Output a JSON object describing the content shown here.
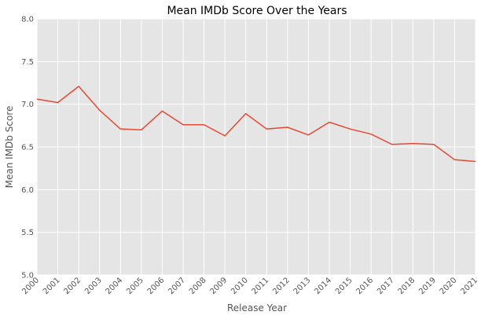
{
  "chart_data": {
    "type": "line",
    "title": "Mean IMDb Score Over the Years",
    "xlabel": "Release Year",
    "ylabel": "Mean IMDb Score",
    "x": [
      "2000",
      "2001",
      "2002",
      "2003",
      "2004",
      "2005",
      "2006",
      "2007",
      "2008",
      "2009",
      "2010",
      "2011",
      "2012",
      "2013",
      "2014",
      "2015",
      "2016",
      "2017",
      "2018",
      "2019",
      "2020",
      "2021"
    ],
    "series": [
      {
        "values": [
          7.06,
          7.02,
          7.21,
          6.93,
          6.71,
          6.7,
          6.92,
          6.76,
          6.76,
          6.63,
          6.89,
          6.71,
          6.73,
          6.64,
          6.79,
          6.71,
          6.65,
          6.53,
          6.54,
          6.53,
          6.35,
          6.33
        ]
      }
    ],
    "ylim": [
      5.0,
      8.0
    ],
    "yticks": [
      "5.0",
      "5.5",
      "6.0",
      "6.5",
      "7.0",
      "7.5",
      "8.0"
    ],
    "grid": true,
    "style": "ggplot",
    "colors": {
      "background": "#E5E5E5",
      "grid": "#FFFFFF",
      "line": "#E24A33",
      "tick_text": "#555555",
      "title_text": "#000000"
    }
  }
}
